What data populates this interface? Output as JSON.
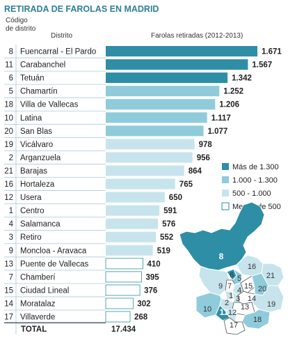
{
  "title": "RETIRADA DE FAROLAS EN MADRID",
  "headers": {
    "code_line1": "Código",
    "code_line2": "de distrito",
    "district": "Distrito",
    "value": "Farolas retiradas (2012-2013)"
  },
  "colors": {
    "title": "#2f7f96",
    "tier1": "#2e8ea6",
    "tier2": "#8fcbdb",
    "tier3": "#c7e4ec",
    "tier4": "#ffffff",
    "row_line": "#a9c9d3"
  },
  "legend": [
    {
      "label": "Más de 1.300",
      "tier": "tier1"
    },
    {
      "label": "1.000 - 1.300",
      "tier": "tier2"
    },
    {
      "label": "500 - 1.000",
      "tier": "tier3"
    },
    {
      "label": "Menos de 500",
      "tier": "tier4"
    }
  ],
  "chart_data": {
    "type": "bar",
    "title": "RETIRADA DE FAROLAS EN MADRID",
    "ylabel": "Farolas retiradas (2012-2013)",
    "xlim": [
      0,
      1671
    ],
    "categories": [
      "Fuencarral - El Pardo",
      "Carabanchel",
      "Tetuán",
      "Chamartín",
      "Villa de Vallecas",
      "Latina",
      "San Blas",
      "Vicálvaro",
      "Arganzuela",
      "Barajas",
      "Hortaleza",
      "Usera",
      "Centro",
      "Salamanca",
      "Retiro",
      "Moncloa - Aravaca",
      "Puente de Vallecas",
      "Chamberí",
      "Ciudad Lineal",
      "Moratalaz",
      "Villaverde"
    ],
    "codes": [
      "8",
      "11",
      "6",
      "5",
      "18",
      "10",
      "20",
      "19",
      "2",
      "21",
      "16",
      "12",
      "1",
      "4",
      "3",
      "9",
      "13",
      "7",
      "15",
      "14",
      "17"
    ],
    "values": [
      1671,
      1567,
      1342,
      1252,
      1206,
      1117,
      1077,
      978,
      956,
      864,
      765,
      650,
      591,
      576,
      552,
      519,
      410,
      395,
      376,
      302,
      268
    ],
    "value_labels": [
      "1.671",
      "1.567",
      "1.342",
      "1.252",
      "1.206",
      "1.117",
      "1.077",
      "978",
      "956",
      "864",
      "765",
      "650",
      "591",
      "576",
      "552",
      "519",
      "410",
      "395",
      "376",
      "302",
      "268"
    ],
    "tiers": [
      "tier1",
      "tier1",
      "tier1",
      "tier2",
      "tier2",
      "tier2",
      "tier2",
      "tier3",
      "tier3",
      "tier3",
      "tier3",
      "tier3",
      "tier3",
      "tier3",
      "tier3",
      "tier3",
      "tier4",
      "tier4",
      "tier4",
      "tier4",
      "tier4"
    ],
    "total_label": "TOTAL",
    "total_value": "17.434",
    "legend_placement": "right"
  },
  "map": {
    "labels": [
      "8",
      "16",
      "21",
      "5",
      "6",
      "9",
      "7",
      "4",
      "15",
      "20",
      "1",
      "2",
      "3",
      "13",
      "14",
      "19",
      "10",
      "11",
      "12",
      "18",
      "17"
    ]
  }
}
